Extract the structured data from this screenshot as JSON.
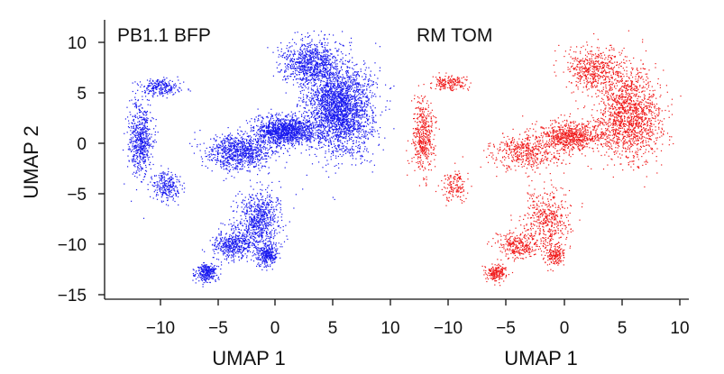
{
  "chart_data": [
    {
      "type": "scatter",
      "title": "PB1.1 BFP",
      "xlabel": "UMAP 1",
      "ylabel": "UMAP 2",
      "xlim": [
        -14.5,
        10.5
      ],
      "ylim": [
        -15.5,
        11.5
      ],
      "xticks": [
        -10,
        -5,
        0,
        5,
        10
      ],
      "xtick_labels": [
        "−10",
        "−5",
        "0",
        "5",
        "10"
      ],
      "yticks": [
        -15,
        -10,
        -5,
        0,
        5,
        10
      ],
      "ytick_labels": [
        "−15",
        "−10",
        "−5",
        "0",
        "5",
        "10"
      ],
      "grid": false,
      "color": "#1a1aef",
      "clusters": [
        {
          "cx": 5.5,
          "cy": 3.5,
          "sx": 2.6,
          "sy": 4.0,
          "n": 2600
        },
        {
          "cx": 3.0,
          "cy": 8.0,
          "sx": 2.2,
          "sy": 2.0,
          "n": 800
        },
        {
          "cx": 0.8,
          "cy": 1.3,
          "sx": 2.4,
          "sy": 1.3,
          "n": 1200
        },
        {
          "cx": -3.2,
          "cy": -0.8,
          "sx": 2.6,
          "sy": 1.6,
          "n": 900
        },
        {
          "cx": -1.5,
          "cy": -7.5,
          "sx": 1.8,
          "sy": 2.6,
          "n": 700
        },
        {
          "cx": -3.8,
          "cy": -10.0,
          "sx": 1.6,
          "sy": 1.3,
          "n": 450
        },
        {
          "cx": -6.0,
          "cy": -12.8,
          "sx": 0.8,
          "sy": 0.8,
          "n": 280
        },
        {
          "cx": -11.8,
          "cy": 0.5,
          "sx": 0.9,
          "sy": 3.2,
          "n": 600
        },
        {
          "cx": -10.0,
          "cy": 5.6,
          "sx": 1.6,
          "sy": 0.7,
          "n": 250
        },
        {
          "cx": -9.5,
          "cy": -4.2,
          "sx": 1.1,
          "sy": 1.4,
          "n": 250
        },
        {
          "cx": -0.8,
          "cy": -11.0,
          "sx": 0.8,
          "sy": 1.0,
          "n": 300
        }
      ]
    },
    {
      "type": "scatter",
      "title": "RM TOM",
      "xlabel": "UMAP 1",
      "ylabel": "",
      "xlim": [
        -14.5,
        10.5
      ],
      "ylim": [
        -15.5,
        11.5
      ],
      "xticks": [
        -10,
        -5,
        0,
        5,
        10
      ],
      "xtick_labels": [
        "−10",
        "−5",
        "0",
        "5",
        "10"
      ],
      "grid": false,
      "color": "#f01a1a",
      "clusters": [
        {
          "cx": 5.5,
          "cy": 2.8,
          "sx": 2.6,
          "sy": 4.0,
          "n": 1500
        },
        {
          "cx": 2.5,
          "cy": 7.5,
          "sx": 2.2,
          "sy": 2.0,
          "n": 500
        },
        {
          "cx": 0.6,
          "cy": 0.8,
          "sx": 2.4,
          "sy": 1.3,
          "n": 700
        },
        {
          "cx": -3.2,
          "cy": -0.8,
          "sx": 2.6,
          "sy": 1.6,
          "n": 500
        },
        {
          "cx": -1.5,
          "cy": -7.5,
          "sx": 1.8,
          "sy": 2.6,
          "n": 450
        },
        {
          "cx": -4.0,
          "cy": -10.0,
          "sx": 1.6,
          "sy": 1.3,
          "n": 300
        },
        {
          "cx": -5.8,
          "cy": -12.8,
          "sx": 0.8,
          "sy": 0.8,
          "n": 200
        },
        {
          "cx": -12.2,
          "cy": 0.8,
          "sx": 0.9,
          "sy": 3.2,
          "n": 450
        },
        {
          "cx": -10.0,
          "cy": 6.0,
          "sx": 1.6,
          "sy": 0.7,
          "n": 180
        },
        {
          "cx": -9.5,
          "cy": -4.2,
          "sx": 1.1,
          "sy": 1.4,
          "n": 150
        },
        {
          "cx": -0.8,
          "cy": -11.0,
          "sx": 0.8,
          "sy": 1.0,
          "n": 180
        }
      ]
    }
  ]
}
